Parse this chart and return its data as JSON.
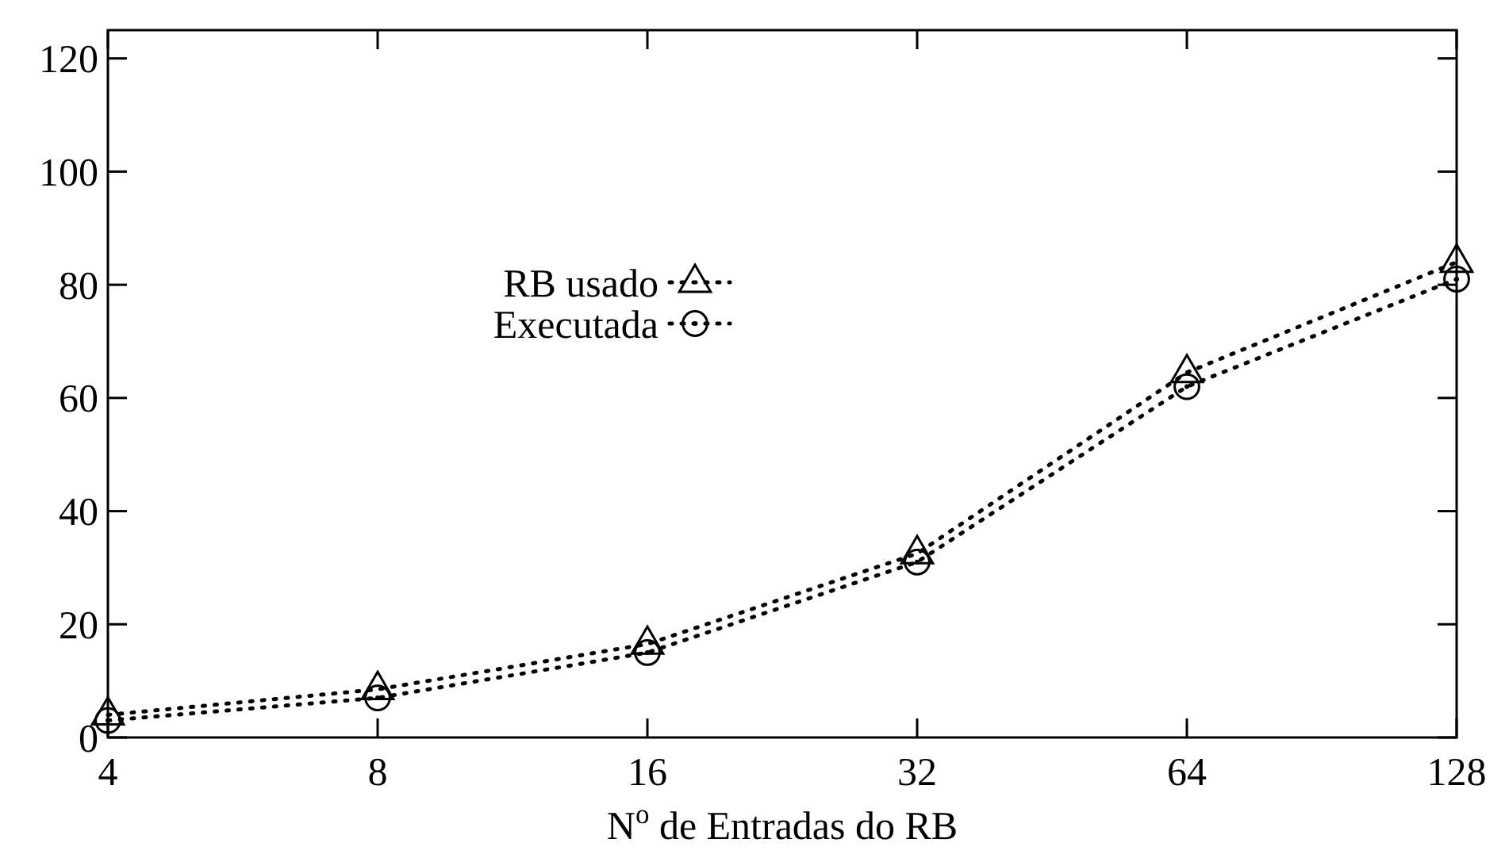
{
  "chart_data": {
    "type": "line",
    "xlabel": "N$^{o}$ de Entradas do RB",
    "log": "x",
    "x": [
      4,
      8,
      16,
      32,
      64,
      128
    ],
    "xlim": [
      4,
      128
    ],
    "xticks": [
      4,
      8,
      16,
      32,
      64,
      128
    ],
    "ylim": [
      0,
      125
    ],
    "yticks": [
      0,
      20,
      40,
      60,
      80,
      100,
      120
    ],
    "grid": false,
    "legend": "left",
    "line_style": "dotted",
    "series": [
      {
        "name": "RB usado",
        "color": "#000000",
        "marker": "triangle",
        "values": [
          4,
          8.5,
          16.5,
          32.5,
          64.5,
          84
        ]
      },
      {
        "name": "Executada",
        "color": "#000000",
        "marker": "circle",
        "values": [
          3,
          7,
          15,
          31,
          62,
          81
        ]
      }
    ]
  }
}
